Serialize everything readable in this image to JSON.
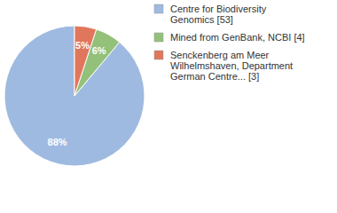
{
  "chart_data": {
    "type": "pie",
    "categories": [
      "Centre for Biodiversity\nGenomics [53]",
      "Mined from GenBank, NCBI [4]",
      "Senckenberg am Meer\nWilhelmshaven, Department\nGerman Centre... [3]"
    ],
    "values": [
      88,
      6,
      5
    ],
    "value_labels": [
      "88%",
      "6%",
      "5%"
    ],
    "colors": [
      "#9fbae0",
      "#94c17a",
      "#e0775c"
    ],
    "data_labels": true,
    "legend": "top-right"
  }
}
